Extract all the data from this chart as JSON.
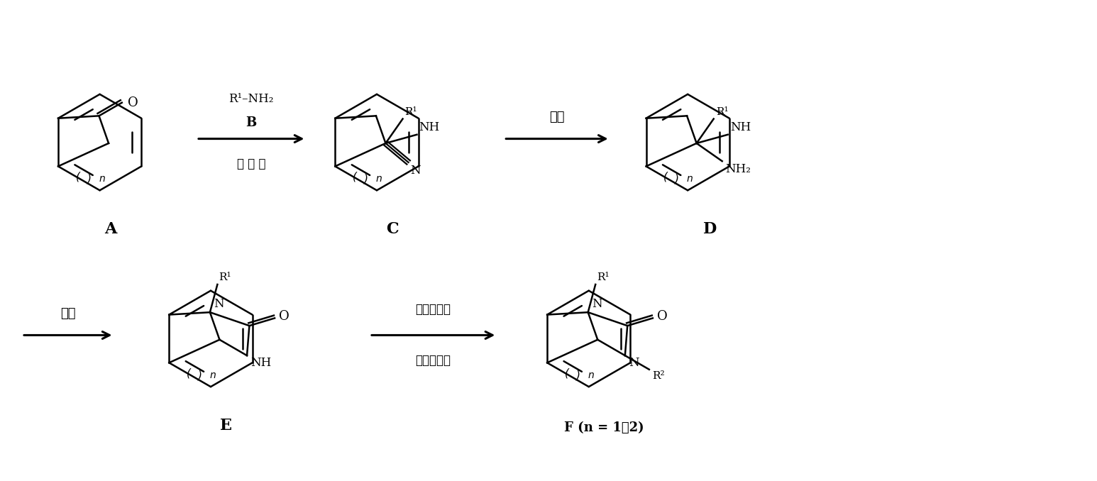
{
  "bg_color": "#ffffff",
  "line_color": "#000000",
  "fig_width": 15.46,
  "fig_height": 6.78,
  "dpi": 100,
  "structures": {
    "A_label": "A",
    "C_label": "C",
    "D_label": "D",
    "E_label": "E",
    "F_label": "F"
  },
  "arrow1_label_top": "R¹–NH₂",
  "arrow1_label_mid": "B",
  "arrow1_label_bot": "氰 基 化",
  "arrow2_label": "还原",
  "arrow3_label": "关环",
  "arrow4_label_top": "烷基衍生化",
  "arrow4_label_bot": "酰基衍生化",
  "F_note": "n = 1或2"
}
